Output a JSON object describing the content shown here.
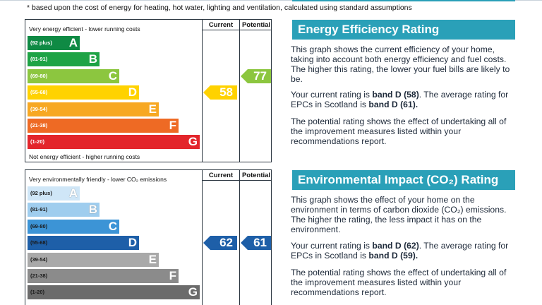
{
  "top_note": "* based upon the cost of energy for heating, hot water, lighting and ventilation, calculated using standard assumptions",
  "colors": {
    "heading_bg": "#2aa0b8",
    "ee_bands": [
      "#0f8a44",
      "#1ea345",
      "#8cc63f",
      "#ffd200",
      "#f7a823",
      "#ee6a24",
      "#e3252b"
    ],
    "ei_bands": [
      "#cfe6f7",
      "#9fcdee",
      "#3c94d6",
      "#1e5fa8",
      "#a9a9a9",
      "#8b8b8b",
      "#6b6b6b"
    ]
  },
  "chart_data": [
    {
      "type": "bar",
      "name": "energy-efficiency",
      "top_label": "Very energy efficient - lower running costs",
      "bottom_label": "Not energy efficient - higher running costs",
      "column_headers": [
        "Current",
        "Potential"
      ],
      "bands": [
        {
          "range": "(92 plus)",
          "letter": "A"
        },
        {
          "range": "(81-91)",
          "letter": "B"
        },
        {
          "range": "(69-80)",
          "letter": "C"
        },
        {
          "range": "(55-68)",
          "letter": "D"
        },
        {
          "range": "(39-54)",
          "letter": "E"
        },
        {
          "range": "(21-38)",
          "letter": "F"
        },
        {
          "range": "(1-20)",
          "letter": "G"
        }
      ],
      "current": {
        "value": "58",
        "band": "D"
      },
      "potential": {
        "value": "77",
        "band": "C"
      }
    },
    {
      "type": "bar",
      "name": "environmental-impact",
      "top_label": "Very environmentally friendly - lower CO₂ emissions",
      "column_headers": [
        "Current",
        "Potential"
      ],
      "bands": [
        {
          "range": "(92 plus)",
          "letter": "A"
        },
        {
          "range": "(81-91)",
          "letter": "B"
        },
        {
          "range": "(69-80)",
          "letter": "C"
        },
        {
          "range": "(55-68)",
          "letter": "D"
        },
        {
          "range": "(39-54)",
          "letter": "E"
        },
        {
          "range": "(21-38)",
          "letter": "F"
        },
        {
          "range": "(1-20)",
          "letter": "G"
        }
      ],
      "current": {
        "value": "62",
        "band": "D"
      },
      "potential": {
        "value": "61",
        "band": "D"
      }
    }
  ],
  "energy_text": {
    "heading": "Energy Efficiency Rating",
    "p1": "This graph shows the current efficiency of your home, taking into account both energy efficiency and fuel costs. The higher this rating, the lower your fuel bills are likely to be.",
    "p2_pre": "Your current rating is ",
    "p2_b1": "band D (58)",
    "p2_mid": ". The average rating for EPCs in Scotland is ",
    "p2_b2": "band D (61).",
    "p3": "The potential rating shows the effect of undertaking all of the improvement measures listed within your recommendations report."
  },
  "impact_text": {
    "heading": "Environmental Impact (CO₂) Rating",
    "p1": "This graph shows the effect of your home on the environment in terms of carbon dioxide (CO₂) emissions. The higher the rating, the less impact it has on the environment.",
    "p2_pre": "Your current rating is ",
    "p2_b1": "band D (62)",
    "p2_mid": ". The average rating for EPCs in Scotland is ",
    "p2_b2": "band D (59).",
    "p3": "The potential rating shows the effect of undertaking all of the improvement measures listed within your recommendations report."
  }
}
